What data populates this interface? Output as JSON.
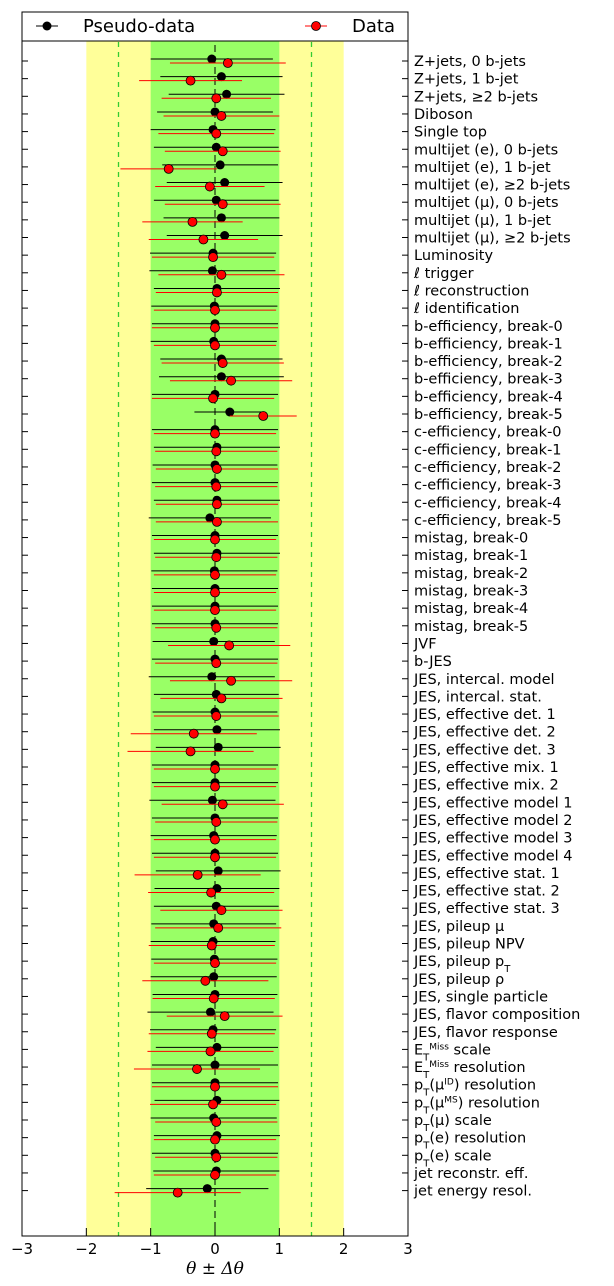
{
  "chart_data": {
    "type": "scatter",
    "xlabel": "θ ± Δθ",
    "xlim": [
      -3,
      3
    ],
    "xticks": [
      "−3",
      "−2",
      "−1",
      "0",
      "1",
      "2",
      "3"
    ],
    "bands": {
      "inner": {
        "range": [
          -1,
          1
        ],
        "color": "#99ff66"
      },
      "outer": {
        "range": [
          -2,
          2
        ],
        "color": "#ffff99"
      },
      "dashed_lines": [
        -1.5,
        1.5
      ],
      "dashed_color": "#33cc33",
      "center_line": 0
    },
    "legend": {
      "placement": "top",
      "entries": [
        {
          "label": "Pseudo-data",
          "color": "#000000"
        },
        {
          "label": "Data",
          "color": "#ff0000"
        }
      ]
    },
    "categories": [
      "Z+jets, 0 b-jets",
      "Z+jets, 1 b-jet",
      "Z+jets, ≥2 b-jets",
      "Diboson",
      "Single top",
      "multijet (e), 0 b-jets",
      "multijet (e), 1 b-jet",
      "multijet (e), ≥2 b-jets",
      "multijet (μ), 0 b-jets",
      "multijet (μ), 1 b-jet",
      "multijet (μ), ≥2 b-jets",
      "Luminosity",
      "ℓ trigger",
      "ℓ reconstruction",
      "ℓ identification",
      "b-efficiency, break-0",
      "b-efficiency, break-1",
      "b-efficiency, break-2",
      "b-efficiency, break-3",
      "b-efficiency, break-4",
      "b-efficiency, break-5",
      "c-efficiency, break-0",
      "c-efficiency, break-1",
      "c-efficiency, break-2",
      "c-efficiency, break-3",
      "c-efficiency, break-4",
      "c-efficiency, break-5",
      "mistag, break-0",
      "mistag, break-1",
      "mistag, break-2",
      "mistag, break-3",
      "mistag, break-4",
      "mistag, break-5",
      "JVF",
      "b-JES",
      "JES, intercal. model",
      "JES, intercal. stat.",
      "JES, effective det. 1",
      "JES, effective det. 2",
      "JES, effective det. 3",
      "JES, effective mix. 1",
      "JES, effective mix. 2",
      "JES, effective model 1",
      "JES, effective model 2",
      "JES, effective model 3",
      "JES, effective model 4",
      "JES, effective stat. 1",
      "JES, effective stat. 2",
      "JES, effective stat. 3",
      "JES, pileup μ",
      "JES, pileup NPV",
      "JES, pileup p_T",
      "JES, pileup ρ",
      "JES, single particle",
      "JES, flavor composition",
      "JES, flavor response",
      "E_T^Miss scale",
      "E_T^Miss resolution",
      "p_T(μ^ID) resolution",
      "p_T(μ^MS) resolution",
      "p_T(μ) scale",
      "p_T(e) resolution",
      "p_T(e) scale",
      "jet reconstr. eff.",
      "jet energy resol."
    ],
    "series": [
      {
        "name": "Pseudo-data",
        "color": "#000000",
        "values": [
          -0.05,
          0.1,
          0.18,
          0.0,
          -0.03,
          0.02,
          0.08,
          0.15,
          0.02,
          0.1,
          0.15,
          -0.03,
          -0.04,
          0.03,
          -0.01,
          0.0,
          -0.02,
          0.1,
          0.1,
          0.0,
          0.23,
          0.0,
          0.03,
          0.0,
          0.0,
          0.03,
          -0.08,
          0.0,
          0.03,
          -0.01,
          0.0,
          0.0,
          0.0,
          -0.02,
          0.0,
          -0.05,
          0.02,
          0.0,
          0.03,
          0.05,
          0.0,
          0.0,
          -0.04,
          0.0,
          -0.02,
          0.0,
          0.05,
          0.03,
          0.02,
          -0.02,
          -0.03,
          -0.01,
          -0.02,
          0.0,
          -0.07,
          -0.03,
          0.03,
          0.0,
          0.0,
          0.03,
          -0.02,
          0.03,
          0.0,
          0.02,
          -0.12
        ],
        "errors": [
          0.95,
          0.95,
          0.9,
          0.9,
          0.97,
          0.97,
          0.9,
          0.9,
          0.97,
          0.9,
          0.9,
          0.98,
          0.98,
          0.98,
          0.98,
          0.98,
          0.98,
          0.95,
          0.97,
          0.98,
          0.55,
          0.98,
          0.98,
          0.97,
          0.98,
          0.98,
          0.95,
          0.98,
          0.98,
          0.98,
          0.98,
          0.98,
          0.98,
          0.95,
          0.98,
          0.98,
          0.97,
          0.97,
          0.98,
          0.97,
          0.98,
          0.98,
          0.98,
          0.98,
          0.98,
          0.98,
          0.97,
          0.97,
          0.97,
          0.97,
          0.97,
          0.98,
          0.98,
          0.97,
          0.98,
          0.98,
          0.95,
          0.98,
          0.98,
          0.97,
          0.98,
          0.98,
          0.98,
          0.98,
          0.95
        ]
      },
      {
        "name": "Data",
        "color": "#ff0000",
        "values": [
          0.2,
          -0.38,
          0.02,
          0.1,
          0.02,
          0.12,
          -0.72,
          -0.08,
          0.12,
          -0.35,
          -0.18,
          -0.03,
          0.1,
          0.03,
          0.0,
          0.0,
          0.0,
          0.12,
          0.25,
          -0.03,
          0.75,
          0.0,
          0.02,
          0.03,
          0.02,
          0.03,
          0.03,
          0.0,
          0.02,
          0.0,
          0.0,
          0.0,
          0.02,
          0.22,
          0.02,
          0.25,
          0.1,
          0.02,
          -0.33,
          -0.38,
          0.0,
          0.0,
          0.12,
          0.02,
          0.0,
          0.0,
          -0.27,
          -0.06,
          0.1,
          0.05,
          -0.05,
          0.0,
          -0.15,
          -0.02,
          0.15,
          -0.05,
          -0.07,
          -0.28,
          0.0,
          -0.03,
          0.02,
          0.0,
          0.02,
          0.0,
          -0.58
        ],
        "errors": [
          0.9,
          0.8,
          0.85,
          0.9,
          0.9,
          0.9,
          0.75,
          0.85,
          0.9,
          0.78,
          0.85,
          0.95,
          0.98,
          0.95,
          0.95,
          0.98,
          0.95,
          0.95,
          0.95,
          0.95,
          0.52,
          0.95,
          0.95,
          0.95,
          0.95,
          0.95,
          0.95,
          0.95,
          0.95,
          0.95,
          0.95,
          0.95,
          0.95,
          0.95,
          0.95,
          0.95,
          0.95,
          0.97,
          0.98,
          0.98,
          0.95,
          0.95,
          0.95,
          0.95,
          0.95,
          0.95,
          0.98,
          0.98,
          0.95,
          0.98,
          0.98,
          0.95,
          0.98,
          0.95,
          0.9,
          0.98,
          0.98,
          0.98,
          0.98,
          0.98,
          0.95,
          0.95,
          0.95,
          0.95,
          0.98
        ]
      }
    ]
  }
}
